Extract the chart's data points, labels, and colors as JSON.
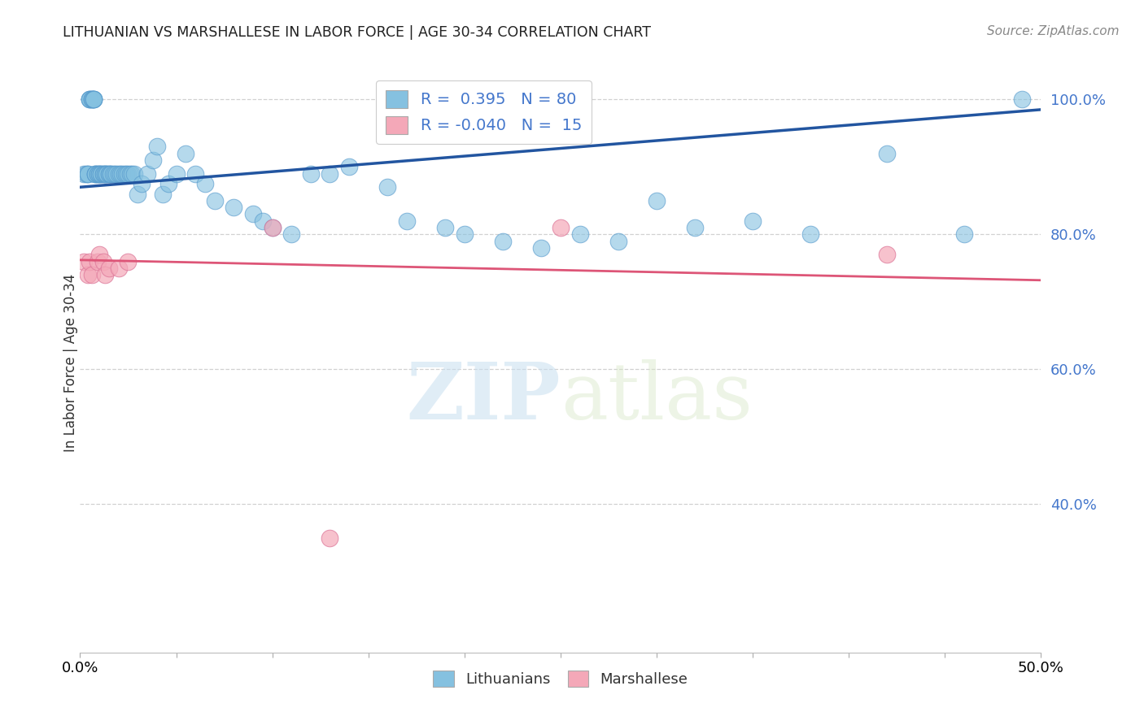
{
  "title": "LITHUANIAN VS MARSHALLESE IN LABOR FORCE | AGE 30-34 CORRELATION CHART",
  "source": "Source: ZipAtlas.com",
  "ylabel": "In Labor Force | Age 30-34",
  "xlim": [
    0.0,
    0.5
  ],
  "ylim": [
    0.18,
    1.04
  ],
  "yticks": [
    0.4,
    0.6,
    0.8,
    1.0
  ],
  "ytick_labels": [
    "40.0%",
    "60.0%",
    "80.0%",
    "100.0%"
  ],
  "xticks": [
    0.0,
    0.05,
    0.1,
    0.15,
    0.2,
    0.25,
    0.3,
    0.35,
    0.4,
    0.45,
    0.5
  ],
  "legend_R_blue": " 0.395",
  "legend_N_blue": "80",
  "legend_R_pink": "-0.040",
  "legend_N_pink": "15",
  "blue_color": "#85c1e0",
  "blue_edge_color": "#5599cc",
  "blue_line_color": "#2255a0",
  "pink_color": "#f4a8b8",
  "pink_edge_color": "#dd7799",
  "pink_line_color": "#dd5577",
  "watermark_zip": "ZIP",
  "watermark_atlas": "atlas",
  "blue_scatter_x": [
    0.002,
    0.003,
    0.004,
    0.004,
    0.005,
    0.005,
    0.005,
    0.006,
    0.006,
    0.006,
    0.007,
    0.007,
    0.007,
    0.007,
    0.008,
    0.008,
    0.008,
    0.009,
    0.009,
    0.01,
    0.01,
    0.011,
    0.011,
    0.012,
    0.012,
    0.013,
    0.013,
    0.014,
    0.014,
    0.015,
    0.015,
    0.016,
    0.016,
    0.017,
    0.018,
    0.019,
    0.02,
    0.021,
    0.022,
    0.023,
    0.024,
    0.025,
    0.026,
    0.027,
    0.028,
    0.03,
    0.032,
    0.035,
    0.038,
    0.04,
    0.043,
    0.046,
    0.05,
    0.055,
    0.06,
    0.065,
    0.07,
    0.08,
    0.09,
    0.095,
    0.1,
    0.11,
    0.12,
    0.13,
    0.14,
    0.16,
    0.17,
    0.19,
    0.2,
    0.22,
    0.24,
    0.26,
    0.28,
    0.3,
    0.32,
    0.35,
    0.38,
    0.42,
    0.46,
    0.49
  ],
  "blue_scatter_y": [
    0.889,
    0.889,
    0.889,
    0.889,
    1.0,
    1.0,
    1.0,
    1.0,
    1.0,
    1.0,
    1.0,
    1.0,
    1.0,
    1.0,
    0.889,
    0.889,
    0.889,
    0.889,
    0.889,
    0.889,
    0.889,
    0.889,
    0.889,
    0.889,
    0.889,
    0.889,
    0.889,
    0.889,
    0.889,
    0.889,
    0.889,
    0.889,
    0.889,
    0.889,
    0.889,
    0.889,
    0.889,
    0.889,
    0.889,
    0.889,
    0.889,
    0.889,
    0.889,
    0.889,
    0.889,
    0.86,
    0.875,
    0.889,
    0.91,
    0.93,
    0.86,
    0.875,
    0.889,
    0.92,
    0.889,
    0.875,
    0.85,
    0.84,
    0.83,
    0.82,
    0.81,
    0.8,
    0.889,
    0.889,
    0.9,
    0.87,
    0.82,
    0.81,
    0.8,
    0.79,
    0.78,
    0.8,
    0.79,
    0.85,
    0.81,
    0.82,
    0.8,
    0.92,
    0.8,
    1.0
  ],
  "pink_scatter_x": [
    0.002,
    0.004,
    0.005,
    0.006,
    0.009,
    0.01,
    0.012,
    0.013,
    0.015,
    0.02,
    0.025,
    0.1,
    0.13,
    0.25,
    0.42
  ],
  "pink_scatter_y": [
    0.76,
    0.74,
    0.76,
    0.74,
    0.76,
    0.77,
    0.76,
    0.74,
    0.75,
    0.75,
    0.76,
    0.81,
    0.35,
    0.81,
    0.77
  ],
  "blue_line_x0": 0.0,
  "blue_line_x1": 0.5,
  "blue_line_y0": 0.87,
  "blue_line_y1": 0.985,
  "pink_line_x0": 0.0,
  "pink_line_x1": 0.5,
  "pink_line_y0": 0.762,
  "pink_line_y1": 0.732
}
